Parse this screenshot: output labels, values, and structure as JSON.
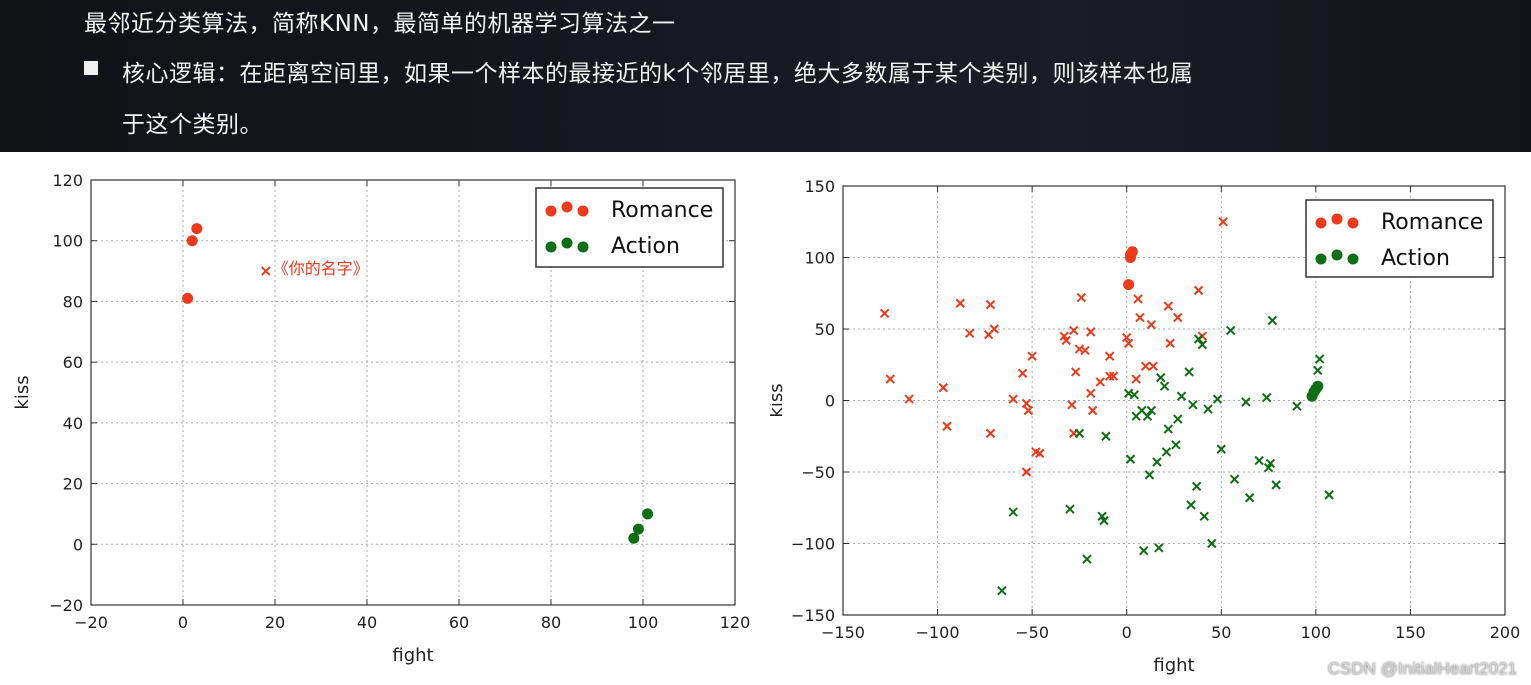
{
  "slide": {
    "line1": "最邻近分类算法，简称KNN，最简单的机器学习算法之一",
    "line2": "核心逻辑：在距离空间里，如果一个样本的最接近的k个邻居里，绝大多数属于某个类别，则该样本也属",
    "line3": "于这个类别。"
  },
  "watermark": "CSDN @InitialHeart2021",
  "colors": {
    "romance": "#ee3a1b",
    "action": "#0e6e14",
    "grid": "#aaaaaa",
    "axis": "#333333"
  },
  "chart_data": [
    {
      "type": "scatter",
      "xlabel": "fight",
      "ylabel": "kiss",
      "xlim": [
        -20,
        120
      ],
      "ylim": [
        -20,
        120
      ],
      "xticks": [
        -20,
        0,
        20,
        40,
        60,
        80,
        100,
        120
      ],
      "yticks": [
        -20,
        0,
        20,
        40,
        60,
        80,
        100,
        120
      ],
      "xtick_labels": [
        "−20",
        "0",
        "20",
        "40",
        "60",
        "80",
        "100",
        "120"
      ],
      "ytick_labels": [
        "−20",
        "0",
        "20",
        "40",
        "60",
        "80",
        "100",
        "120"
      ],
      "grid": true,
      "legend_position": "top-right",
      "series": [
        {
          "name": "Romance",
          "marker": "dot",
          "color": "#ee3a1b",
          "points": [
            [
              1,
              81
            ],
            [
              2,
              100
            ],
            [
              3,
              104
            ]
          ]
        },
        {
          "name": "Action",
          "marker": "dot",
          "color": "#0e6e14",
          "points": [
            [
              98,
              2
            ],
            [
              99,
              5
            ],
            [
              101,
              10
            ]
          ]
        }
      ],
      "annotations": [
        {
          "text": "《你的名字》",
          "marker": "x",
          "color": "#ee3a1b",
          "point": [
            18,
            90
          ]
        }
      ]
    },
    {
      "type": "scatter",
      "xlabel": "fight",
      "ylabel": "kiss",
      "xlim": [
        -150,
        200
      ],
      "ylim": [
        -150,
        150
      ],
      "xticks": [
        -150,
        -100,
        -50,
        0,
        50,
        100,
        150,
        200
      ],
      "yticks": [
        -150,
        -100,
        -50,
        0,
        50,
        100,
        150
      ],
      "xtick_labels": [
        "−150",
        "−100",
        "−50",
        "0",
        "50",
        "100",
        "150",
        "200"
      ],
      "ytick_labels": [
        "−150",
        "−100",
        "−50",
        "0",
        "50",
        "100",
        "150"
      ],
      "grid": true,
      "legend_position": "top-right",
      "series": [
        {
          "name": "Romance",
          "marker": "dot",
          "color": "#ee3a1b",
          "points": [
            [
              1,
              81
            ],
            [
              2,
              100
            ],
            [
              3,
              104
            ],
            [
              2,
              102
            ]
          ]
        },
        {
          "name": "Action",
          "marker": "dot",
          "color": "#0e6e14",
          "points": [
            [
              98,
              3
            ],
            [
              99,
              6
            ],
            [
              101,
              10
            ],
            [
              100,
              8
            ]
          ]
        },
        {
          "name": "",
          "marker": "x",
          "color": "#ee3a1b",
          "points": [
            [
              -128,
              61
            ],
            [
              -125,
              15
            ],
            [
              -115,
              1
            ],
            [
              -97,
              9
            ],
            [
              -95,
              -18
            ],
            [
              -88,
              68
            ],
            [
              -83,
              47
            ],
            [
              -73,
              46
            ],
            [
              -72,
              67
            ],
            [
              -70,
              50
            ],
            [
              -72,
              -23
            ],
            [
              -60,
              1
            ],
            [
              -55,
              19
            ],
            [
              -53,
              -2
            ],
            [
              -52,
              -7
            ],
            [
              -50,
              31
            ],
            [
              -48,
              -36
            ],
            [
              -46,
              -37
            ],
            [
              -53,
              -50
            ],
            [
              -33,
              45
            ],
            [
              -32,
              42
            ],
            [
              -28,
              49
            ],
            [
              -27,
              20
            ],
            [
              -25,
              36
            ],
            [
              -24,
              72
            ],
            [
              -22,
              35
            ],
            [
              -19,
              48
            ],
            [
              -19,
              5
            ],
            [
              -18,
              -7
            ],
            [
              -14,
              13
            ],
            [
              -9,
              31
            ],
            [
              -9,
              17
            ],
            [
              -7,
              17
            ],
            [
              -29,
              -3
            ],
            [
              -28,
              -23
            ],
            [
              0,
              44
            ],
            [
              1,
              40
            ],
            [
              5,
              15
            ],
            [
              6,
              71
            ],
            [
              7,
              58
            ],
            [
              10,
              24
            ],
            [
              14,
              24
            ],
            [
              13,
              53
            ],
            [
              22,
              66
            ],
            [
              23,
              40
            ],
            [
              27,
              58
            ],
            [
              38,
              77
            ],
            [
              40,
              45
            ],
            [
              51,
              125
            ]
          ]
        },
        {
          "name": "",
          "marker": "x",
          "color": "#0e6e14",
          "points": [
            [
              -66,
              -133
            ],
            [
              -60,
              -78
            ],
            [
              -30,
              -76
            ],
            [
              -25,
              -23
            ],
            [
              -21,
              -111
            ],
            [
              -13,
              -81
            ],
            [
              -12,
              -84
            ],
            [
              -11,
              -25
            ],
            [
              1,
              5
            ],
            [
              2,
              -41
            ],
            [
              4,
              4
            ],
            [
              5,
              -11
            ],
            [
              9,
              -105
            ],
            [
              8,
              -7
            ],
            [
              11,
              -11
            ],
            [
              13,
              -7
            ],
            [
              12,
              -52
            ],
            [
              16,
              -43
            ],
            [
              17,
              -103
            ],
            [
              18,
              16
            ],
            [
              20,
              10
            ],
            [
              21,
              -36
            ],
            [
              22,
              -20
            ],
            [
              26,
              -31
            ],
            [
              27,
              -13
            ],
            [
              29,
              3
            ],
            [
              33,
              20
            ],
            [
              34,
              -73
            ],
            [
              35,
              -3
            ],
            [
              37,
              -60
            ],
            [
              38,
              43
            ],
            [
              40,
              39
            ],
            [
              41,
              -81
            ],
            [
              43,
              -6
            ],
            [
              45,
              -100
            ],
            [
              48,
              1
            ],
            [
              50,
              -34
            ],
            [
              55,
              49
            ],
            [
              57,
              -55
            ],
            [
              63,
              -1
            ],
            [
              65,
              -68
            ],
            [
              70,
              -42
            ],
            [
              74,
              2
            ],
            [
              75,
              -47
            ],
            [
              76,
              -44
            ],
            [
              77,
              56
            ],
            [
              79,
              -59
            ],
            [
              90,
              -4
            ],
            [
              102,
              29
            ],
            [
              101,
              21
            ],
            [
              107,
              -66
            ]
          ]
        }
      ]
    }
  ]
}
